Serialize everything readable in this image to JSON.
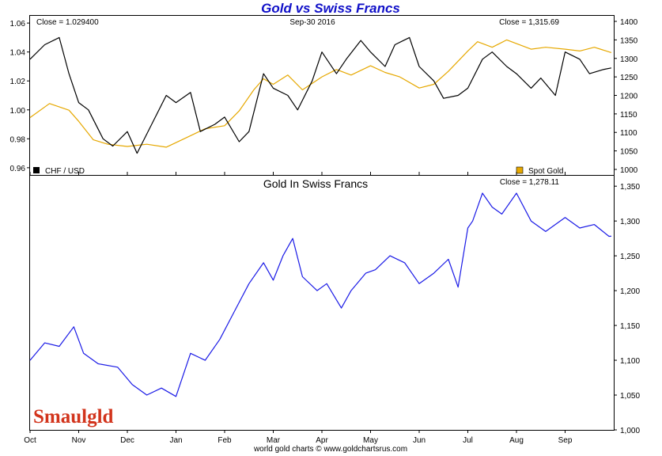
{
  "chart_data": [
    {
      "type": "line",
      "title": "Gold vs Swiss Francs",
      "header_left": "Close = 1.029400",
      "header_center": "Sep-30  2016",
      "header_right": "Close = 1,315.69",
      "x_ticks": [
        "Oct",
        "Nov",
        "Dec",
        "Jan",
        "Feb",
        "Mar",
        "Apr",
        "May",
        "Jun",
        "Jul",
        "Aug",
        "Sep"
      ],
      "y_left_ticks": [
        "1.06",
        "1.04",
        "1.02",
        "1.00",
        "0.98",
        "0.96"
      ],
      "y_right_ticks": [
        "1400",
        "1350",
        "1300",
        "1250",
        "1200",
        "1150",
        "1100",
        "1050",
        "1000"
      ],
      "ylim_left": [
        0.955,
        1.065
      ],
      "ylim_right": [
        985,
        1415
      ],
      "legend": [
        {
          "label": "CHF / USD",
          "color": "#000000"
        },
        {
          "label": "Spot Gold",
          "color": "#e6a800"
        }
      ],
      "series": [
        {
          "name": "CHF / USD",
          "axis": "left",
          "color": "#000000",
          "x": [
            0,
            0.3,
            0.6,
            0.8,
            1.0,
            1.2,
            1.5,
            1.7,
            2.0,
            2.2,
            2.5,
            2.8,
            3.0,
            3.3,
            3.5,
            3.8,
            4.0,
            4.3,
            4.5,
            4.8,
            5.0,
            5.3,
            5.5,
            5.8,
            6.0,
            6.3,
            6.5,
            6.8,
            7.0,
            7.3,
            7.5,
            7.8,
            8.0,
            8.3,
            8.5,
            8.8,
            9.0,
            9.3,
            9.5,
            9.8,
            10.0,
            10.3,
            10.5,
            10.8,
            11.0,
            11.3,
            11.5,
            11.8,
            11.95
          ],
          "values": [
            1.035,
            1.045,
            1.05,
            1.025,
            1.005,
            1.0,
            0.98,
            0.975,
            0.985,
            0.97,
            0.99,
            1.01,
            1.005,
            1.012,
            0.985,
            0.99,
            0.995,
            0.978,
            0.985,
            1.025,
            1.015,
            1.01,
            1.0,
            1.02,
            1.04,
            1.025,
            1.035,
            1.048,
            1.04,
            1.03,
            1.045,
            1.05,
            1.03,
            1.02,
            1.008,
            1.01,
            1.015,
            1.035,
            1.04,
            1.03,
            1.025,
            1.015,
            1.022,
            1.01,
            1.04,
            1.035,
            1.025,
            1.028,
            1.029
          ]
        },
        {
          "name": "Spot Gold",
          "axis": "right",
          "color": "#e6a800",
          "x": [
            0,
            0.4,
            0.8,
            1.0,
            1.3,
            1.6,
            2.0,
            2.4,
            2.8,
            3.2,
            3.6,
            4.0,
            4.3,
            4.6,
            4.8,
            5.0,
            5.3,
            5.6,
            6.0,
            6.3,
            6.6,
            7.0,
            7.3,
            7.6,
            8.0,
            8.3,
            8.6,
            9.0,
            9.2,
            9.5,
            9.8,
            10.0,
            10.3,
            10.6,
            11.0,
            11.3,
            11.6,
            11.95
          ],
          "values": [
            1140,
            1178,
            1160,
            1130,
            1080,
            1068,
            1062,
            1068,
            1060,
            1085,
            1110,
            1118,
            1158,
            1215,
            1245,
            1230,
            1255,
            1215,
            1250,
            1270,
            1255,
            1280,
            1262,
            1250,
            1220,
            1230,
            1265,
            1320,
            1345,
            1330,
            1350,
            1340,
            1325,
            1330,
            1325,
            1320,
            1330,
            1315.69
          ]
        }
      ]
    },
    {
      "type": "line",
      "title": "Gold In Swiss Francs",
      "header_right": "Close = 1,278.11",
      "x_ticks": [
        "Oct",
        "Nov",
        "Dec",
        "Jan",
        "Feb",
        "Mar",
        "Apr",
        "May",
        "Jun",
        "Jul",
        "Aug",
        "Sep"
      ],
      "y_ticks": [
        "1,350",
        "1,300",
        "1,250",
        "1,200",
        "1,150",
        "1,100",
        "1,050",
        "1,000"
      ],
      "ylim": [
        1000,
        1365
      ],
      "series": [
        {
          "name": "Gold In Swiss Francs",
          "color": "#1a1ae6",
          "x": [
            0,
            0.3,
            0.6,
            0.9,
            1.1,
            1.4,
            1.8,
            2.1,
            2.4,
            2.7,
            3.0,
            3.3,
            3.6,
            3.9,
            4.2,
            4.5,
            4.8,
            5.0,
            5.2,
            5.4,
            5.6,
            5.9,
            6.1,
            6.4,
            6.6,
            6.9,
            7.1,
            7.4,
            7.7,
            8.0,
            8.3,
            8.6,
            8.8,
            9.0,
            9.1,
            9.3,
            9.5,
            9.7,
            10.0,
            10.3,
            10.6,
            11.0,
            11.3,
            11.6,
            11.9,
            11.95
          ],
          "values": [
            1100,
            1125,
            1120,
            1148,
            1110,
            1095,
            1090,
            1065,
            1050,
            1060,
            1048,
            1110,
            1100,
            1130,
            1170,
            1210,
            1240,
            1215,
            1250,
            1275,
            1220,
            1200,
            1210,
            1175,
            1200,
            1225,
            1230,
            1250,
            1240,
            1210,
            1225,
            1245,
            1205,
            1290,
            1300,
            1340,
            1320,
            1310,
            1340,
            1300,
            1285,
            1305,
            1290,
            1295,
            1278,
            1278.11
          ]
        }
      ]
    }
  ],
  "footer": "world gold charts © www.goldchartsrus.com",
  "logo_text": "Smaulgld"
}
